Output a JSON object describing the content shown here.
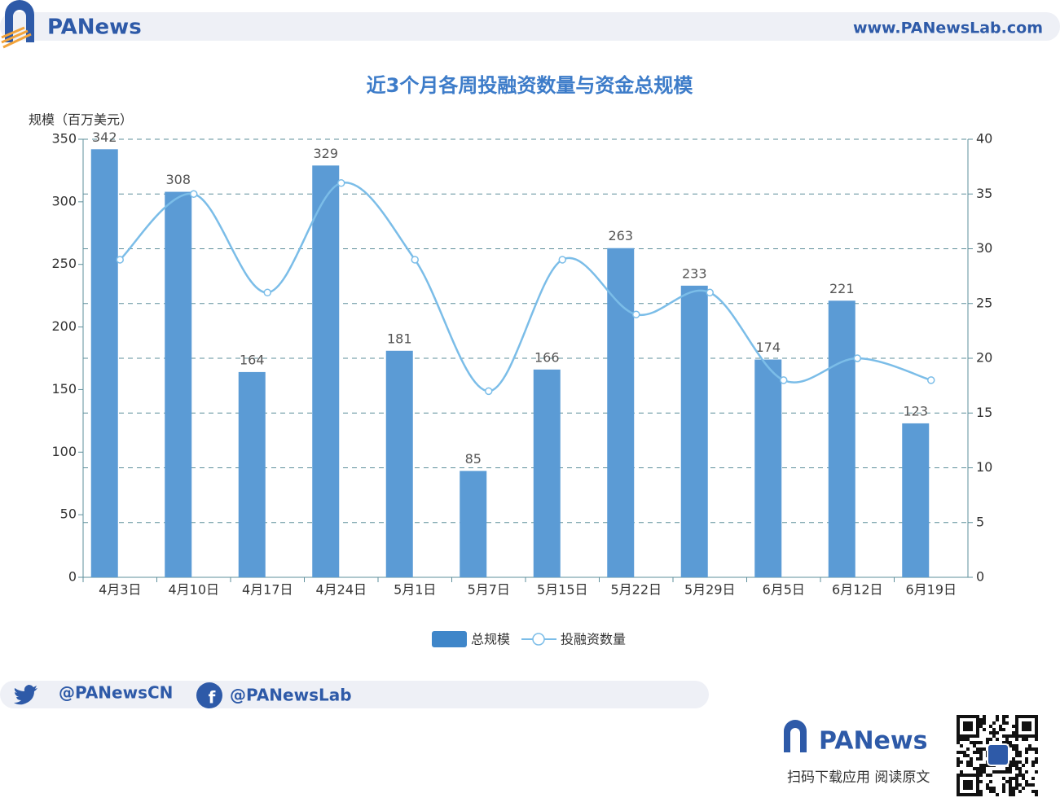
{
  "header": {
    "brand": "PANews",
    "url": "www.PANewsLab.com"
  },
  "chart_data": {
    "type": "bar",
    "title": "近3个月各周投融资数量与资金总规模",
    "y_label": "规模（百万美元）",
    "categories": [
      "4月3日",
      "4月10日",
      "4月17日",
      "4月24日",
      "5月1日",
      "5月7日",
      "5月15日",
      "5月22日",
      "5月29日",
      "6月5日",
      "6月12日",
      "6月19日"
    ],
    "series": [
      {
        "name": "总规模",
        "type": "bar",
        "color": "#5b9bd5",
        "values": [
          342,
          308,
          164,
          329,
          181,
          85,
          166,
          263,
          233,
          174,
          221,
          123
        ]
      },
      {
        "name": "投融资数量",
        "type": "line",
        "axis": "y2",
        "color": "#7bbde8",
        "values": [
          29,
          35,
          26,
          36,
          29,
          17,
          29,
          24,
          26,
          18,
          20,
          18
        ]
      }
    ],
    "ylim": [
      0,
      350
    ],
    "yticks": [
      0,
      50,
      100,
      150,
      200,
      250,
      300,
      350
    ],
    "y2lim": [
      0,
      40
    ],
    "y2ticks": [
      0,
      5,
      10,
      15,
      20,
      25,
      30,
      35,
      40
    ],
    "grid": true
  },
  "footer": {
    "twitter": "@PANewsCN",
    "facebook": "@PANewsLab",
    "brand": "PANews",
    "caption": "扫码下载应用  阅读原文"
  }
}
